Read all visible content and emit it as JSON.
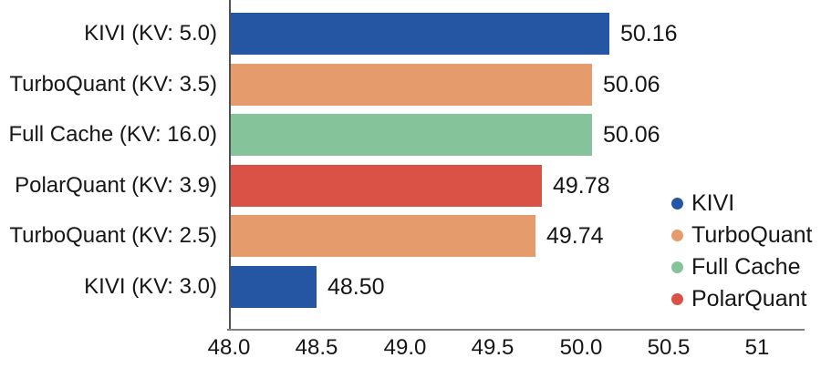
{
  "chart_data": {
    "type": "bar",
    "orientation": "horizontal",
    "title": "",
    "xlabel": "",
    "ylabel": "",
    "grid": false,
    "categories": [
      "KIVI (KV: 5.0)",
      "TurboQuant (KV: 3.5)",
      "Full Cache (KV: 16.0)",
      "PolarQuant (KV: 3.9)",
      "TurboQuant (KV: 2.5)",
      "KIVI (KV: 3.0)"
    ],
    "values": [
      50.16,
      50.06,
      50.06,
      49.78,
      49.74,
      48.5
    ],
    "value_labels": [
      "50.16",
      "50.06",
      "50.06",
      "49.78",
      "49.74",
      "48.50"
    ],
    "bar_series": [
      "KIVI",
      "TurboQuant",
      "Full Cache",
      "PolarQuant",
      "TurboQuant",
      "KIVI"
    ],
    "bar_colors": [
      "#2456A3",
      "#E69B6C",
      "#85C39B",
      "#D95245",
      "#E69B6C",
      "#2456A3"
    ],
    "xlim": [
      48,
      51.27
    ],
    "xticks": [
      48.0,
      48.5,
      49.0,
      49.5,
      50.0,
      50.5,
      51
    ],
    "xtick_labels": [
      "48.0",
      "48.5",
      "49.0",
      "49.5",
      "50.0",
      "50.5",
      "51"
    ],
    "legend": {
      "position": "right",
      "entries": [
        {
          "label": "KIVI",
          "color": "#2456A3"
        },
        {
          "label": "TurboQuant",
          "color": "#E69B6C"
        },
        {
          "label": "Full Cache",
          "color": "#85C39B"
        },
        {
          "label": "PolarQuant",
          "color": "#D95245"
        }
      ]
    },
    "colors": {
      "y_axis_line": "#4F5053",
      "x_axis_line": "#7E7F82",
      "text": "#161616",
      "background": "#ffffff"
    }
  }
}
